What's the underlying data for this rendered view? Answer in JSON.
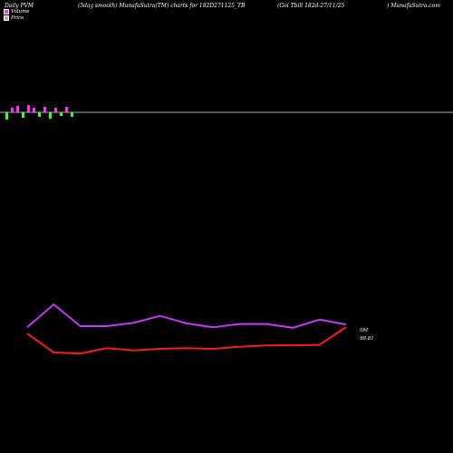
{
  "header": {
    "left": "Daily PVM",
    "middle": "(5day smooth) MunafaSutra(TM) charts for 182D271125_TB",
    "right": "(Goi  Tbill 182d-27/11/25",
    "site": ") MunafaSutra.com"
  },
  "legend": {
    "volume_label": "Volume",
    "price_label": "Price"
  },
  "colors": {
    "background": "#000000",
    "volume_line": "#cc33ff",
    "price_line": "#ff1a1a",
    "bar_green": "#33ff33",
    "bar_magenta": "#ff33ff",
    "divider": "#aaaaaa"
  },
  "chart_data": {
    "type": "line",
    "x": [
      1,
      2,
      3,
      4,
      5,
      6,
      7,
      8,
      9,
      10,
      11,
      12,
      13
    ],
    "series": [
      {
        "name": "Volume",
        "values": [
          0.48,
          0.9,
          0.5,
          0.5,
          0.56,
          0.69,
          0.55,
          0.48,
          0.54,
          0.54,
          0.47,
          0.62,
          0.53
        ]
      },
      {
        "name": "Price",
        "values": [
          99.78,
          99.69,
          99.685,
          99.71,
          99.7,
          99.707,
          99.71,
          99.707,
          99.717,
          99.723,
          99.724,
          99.726,
          99.81
        ]
      }
    ],
    "end_labels": {
      "volume": "0M",
      "price": "99.81"
    },
    "bars": {
      "values": [
        -8,
        5,
        7,
        -6,
        8,
        5,
        -5,
        6,
        -7,
        5,
        -4,
        6,
        -5
      ],
      "colors": [
        "green",
        "magenta",
        "magenta",
        "green",
        "magenta",
        "magenta",
        "green",
        "magenta",
        "green",
        "magenta",
        "green",
        "magenta",
        "green"
      ]
    }
  }
}
